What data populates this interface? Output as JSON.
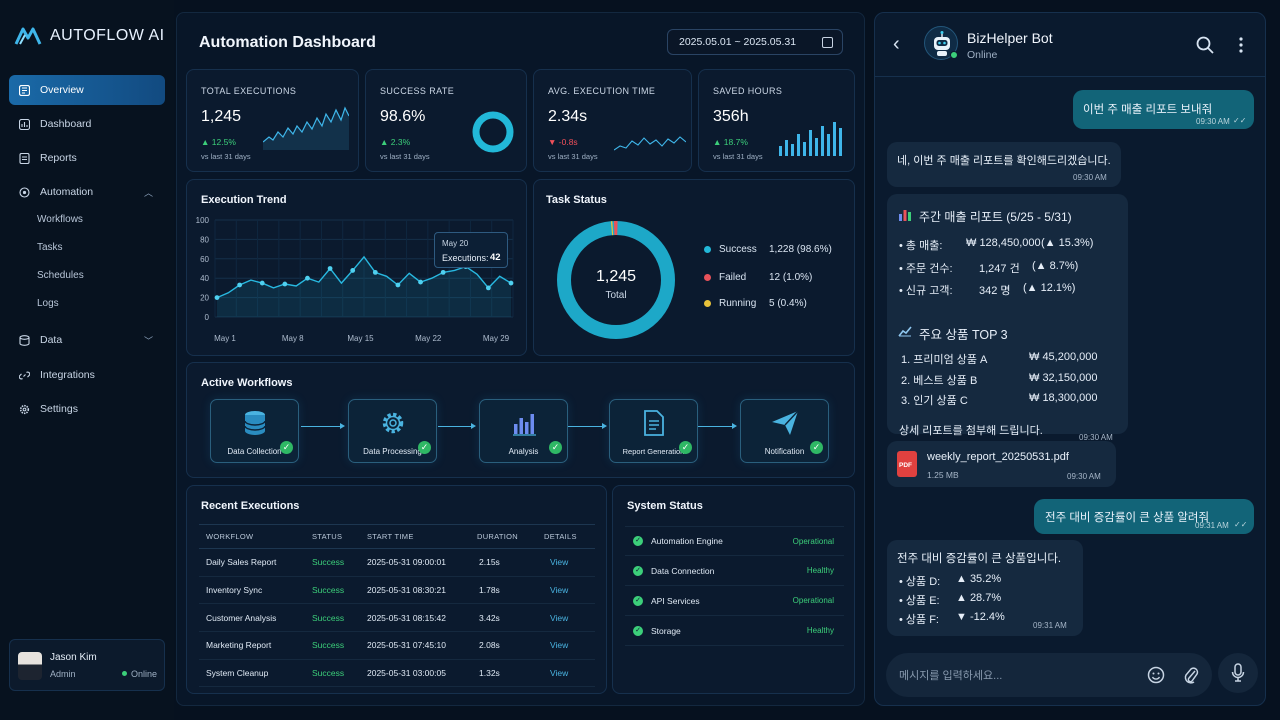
{
  "brand": {
    "name": "AUTOFLOW AI"
  },
  "sidebar": {
    "items": [
      {
        "label": "Overview",
        "icon": "grid-icon"
      },
      {
        "label": "Dashboard",
        "icon": "dashboard-icon"
      },
      {
        "label": "Reports",
        "icon": "report-icon"
      },
      {
        "label": "Automation",
        "icon": "automation-icon"
      },
      {
        "label": "Data",
        "icon": "database-icon"
      },
      {
        "label": "Integrations",
        "icon": "link-icon"
      },
      {
        "label": "Settings",
        "icon": "gear-icon"
      }
    ],
    "automation_sub": [
      "Workflows",
      "Tasks",
      "Schedules",
      "Logs"
    ],
    "user": {
      "name": "Jason Kim",
      "role": "Admin",
      "status": "Online"
    }
  },
  "header": {
    "title": "Automation Dashboard",
    "date_range": "2025.05.01 ~ 2025.05.31"
  },
  "stats": [
    {
      "label": "TOTAL EXECUTIONS",
      "value": "1,245",
      "delta": "▲ 12.5%",
      "sub": "vs last 31 days"
    },
    {
      "label": "SUCCESS RATE",
      "value": "98.6%",
      "delta": "▲ 2.3%",
      "sub": "vs last 31 days"
    },
    {
      "label": "AVG. EXECUTION TIME",
      "value": "2.34s",
      "delta": "▼ -0.8s",
      "sub": "vs last 31 days"
    },
    {
      "label": "SAVED HOURS",
      "value": "356h",
      "delta": "▲ 18.7%",
      "sub": "vs last 31 days"
    }
  ],
  "trend": {
    "title": "Execution Trend",
    "tooltip": {
      "date": "May 20",
      "label": "Executions:",
      "value": "42"
    },
    "chart_data": {
      "type": "line",
      "ylim": [
        0,
        100
      ],
      "yticks": [
        "100",
        "80",
        "60",
        "40",
        "20",
        "0"
      ],
      "xticks": [
        "May 1",
        "May 8",
        "May 15",
        "May 22",
        "May 29"
      ],
      "values": [
        20,
        25,
        33,
        38,
        35,
        30,
        34,
        32,
        40,
        36,
        50,
        35,
        48,
        62,
        46,
        42,
        33,
        45,
        36,
        40,
        46,
        48,
        52,
        44,
        30,
        42,
        35
      ]
    }
  },
  "task_status": {
    "title": "Task Status",
    "total": "1,245",
    "total_label": "Total",
    "items": [
      {
        "label": "Success",
        "value": "1,228 (98.6%)",
        "color": "#22b8d8"
      },
      {
        "label": "Failed",
        "value": "12 (1.0%)",
        "color": "#e8525a"
      },
      {
        "label": "Running",
        "value": "5 (0.4%)",
        "color": "#e8c23a"
      }
    ]
  },
  "workflows": {
    "title": "Active Workflows",
    "nodes": [
      {
        "label": "Data Collection",
        "icon": "database-icon"
      },
      {
        "label": "Data Processing",
        "icon": "gear-icon"
      },
      {
        "label": "Analysis",
        "icon": "bar-chart-icon"
      },
      {
        "label": "Report Generation",
        "icon": "document-icon"
      },
      {
        "label": "Notification",
        "icon": "send-icon"
      }
    ]
  },
  "recent": {
    "title": "Recent Executions",
    "columns": [
      "WORKFLOW",
      "STATUS",
      "START TIME",
      "DURATION",
      "DETAILS"
    ],
    "rows": [
      [
        "Daily Sales Report",
        "Success",
        "2025-05-31  09:00:01",
        "2.15s",
        "View"
      ],
      [
        "Inventory Sync",
        "Success",
        "2025-05-31  08:30:21",
        "1.78s",
        "View"
      ],
      [
        "Customer Analysis",
        "Success",
        "2025-05-31  08:15:42",
        "3.42s",
        "View"
      ],
      [
        "Marketing Report",
        "Success",
        "2025-05-31  07:45:10",
        "2.08s",
        "View"
      ],
      [
        "System Cleanup",
        "Success",
        "2025-05-31  03:00:05",
        "1.32s",
        "View"
      ]
    ]
  },
  "system": {
    "title": "System Status",
    "rows": [
      {
        "label": "Automation Engine",
        "status": "Operational"
      },
      {
        "label": "Data Connection",
        "status": "Healthy"
      },
      {
        "label": "API Services",
        "status": "Operational"
      },
      {
        "label": "Storage",
        "status": "Healthy"
      }
    ]
  },
  "chat": {
    "bot_name": "BizHelper Bot",
    "bot_status": "Online",
    "m1": {
      "text": "이번 주 매출 리포트 보내줘",
      "time": "09:30 AM"
    },
    "m2": {
      "text": "네, 이번 주 매출 리포트를 확인해드리겠습니다.",
      "time": "09:30 AM"
    },
    "report": {
      "title": "주간 매출 리포트 (5/25 - 5/31)",
      "lines": [
        {
          "label": "• 총 매출:",
          "value": "₩ 128,450,000",
          "delta": "(▲ 15.3%)"
        },
        {
          "label": "• 주문 건수:",
          "value": "1,247 건",
          "delta": "(▲ 8.7%)"
        },
        {
          "label": "• 신규 고객:",
          "value": "342 명",
          "delta": "(▲ 12.1%)"
        }
      ],
      "top_title": "주요 상품 TOP 3",
      "top": [
        {
          "name": "1. 프리미엄 상품 A",
          "value": "₩ 45,200,000"
        },
        {
          "name": "2. 베스트 상품 B",
          "value": "₩ 32,150,000"
        },
        {
          "name": "3. 인기 상품 C",
          "value": "₩ 18,300,000"
        }
      ],
      "footer": "상세 리포트를 첨부해 드립니다.",
      "time": "09:30 AM"
    },
    "file": {
      "name": "weekly_report_20250531.pdf",
      "size": "1.25 MB",
      "time": "09:30 AM",
      "badge": "PDF"
    },
    "m3": {
      "text": "전주 대비 증감률이 큰 상품 알려줘",
      "time": "09:31 AM"
    },
    "m4": {
      "title": "전주 대비 증감률이 큰 상품입니다.",
      "items": [
        {
          "label": "• 상품 D:",
          "value": "▲ 35.2%"
        },
        {
          "label": "• 상품 E:",
          "value": "▲ 28.7%"
        },
        {
          "label": "• 상품 F:",
          "value": "▼ -12.4%"
        }
      ],
      "time": "09:31 AM"
    },
    "input_placeholder": "메시지를 입력하세요..."
  }
}
